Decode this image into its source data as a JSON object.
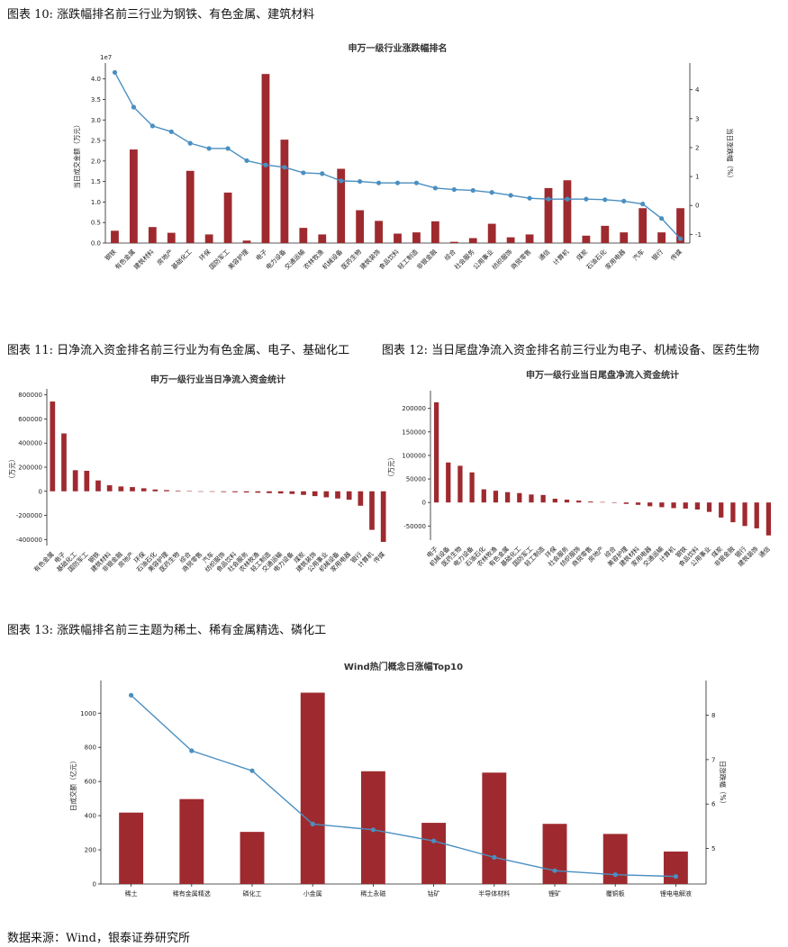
{
  "captions": {
    "fig10": "图表 10:  涨跌幅排名前三行业为钢铁、有色金属、建筑材料",
    "fig11": "图表 11:  日净流入资金排名前三行业为有色金属、电子、基础化工",
    "fig12": "图表 12:  当日尾盘净流入资金排名前三行业为电子、机械设备、医药生物",
    "fig13": "图表 13:  涨跌幅排名前三主题为稀土、稀有金属精选、磷化工"
  },
  "source": "数据来源：Wind，银泰证券研究所",
  "colors": {
    "bar": "#9e2a2f",
    "line": "#4a8fc1"
  },
  "chart_data": [
    {
      "id": "industry_rank",
      "type": "bar",
      "title": "申万一级行业涨跌幅排名",
      "ylabel": "当日成交金额（万元）",
      "y2label": "当日涨跌幅（%）",
      "yscale_label": "1e7",
      "ylim": [
        0,
        4.3
      ],
      "y2lim": [
        -1.3,
        4.8
      ],
      "yticks": [
        0.0,
        0.5,
        1.0,
        1.5,
        2.0,
        2.5,
        3.0,
        3.5,
        4.0
      ],
      "y2ticks": [
        -1,
        0,
        1,
        2,
        3,
        4
      ],
      "categories": [
        "钢铁",
        "有色金属",
        "建筑材料",
        "房地产",
        "基础化工",
        "环保",
        "国防军工",
        "美容护理",
        "电子",
        "电力设备",
        "交通运输",
        "农林牧渔",
        "机械设备",
        "医药生物",
        "建筑装饰",
        "食品饮料",
        "轻工制造",
        "非银金融",
        "综合",
        "社会服务",
        "公用事业",
        "纺织服饰",
        "商贸零售",
        "通信",
        "计算机",
        "煤炭",
        "石油石化",
        "家用电器",
        "汽车",
        "银行",
        "传媒"
      ],
      "values": [
        0.3,
        2.28,
        0.39,
        0.25,
        1.76,
        0.21,
        1.23,
        0.06,
        4.12,
        2.52,
        0.37,
        0.21,
        1.81,
        0.8,
        0.54,
        0.23,
        0.26,
        0.53,
        0.03,
        0.12,
        0.47,
        0.14,
        0.21,
        1.34,
        1.53,
        0.18,
        0.42,
        0.26,
        0.85,
        0.26,
        0.85
      ],
      "line_values": [
        4.6,
        3.4,
        2.75,
        2.55,
        2.15,
        1.97,
        1.97,
        1.55,
        1.4,
        1.32,
        1.13,
        1.1,
        0.85,
        0.83,
        0.78,
        0.78,
        0.78,
        0.6,
        0.55,
        0.52,
        0.45,
        0.35,
        0.25,
        0.22,
        0.22,
        0.22,
        0.2,
        0.15,
        0.05,
        -0.45,
        -1.15
      ]
    },
    {
      "id": "net_inflow",
      "type": "bar",
      "title": "申万一级行业当日净流入资金统计",
      "ylabel": "（万元）",
      "ylim": [
        -450000,
        820000
      ],
      "yticks": [
        -400000,
        -200000,
        0,
        200000,
        400000,
        600000,
        800000
      ],
      "categories": [
        "有色金属",
        "电子",
        "基础化工",
        "国防军工",
        "钢铁",
        "建筑材料",
        "非银金融",
        "房地产",
        "环保",
        "石油石化",
        "美容护理",
        "医药生物",
        "综合",
        "商贸零售",
        "汽车",
        "纺织服饰",
        "食品饮料",
        "社会服务",
        "农林牧渔",
        "轻工制造",
        "交通运输",
        "电力设备",
        "煤炭",
        "建筑装饰",
        "公用事业",
        "机械设备",
        "家用电器",
        "银行",
        "计算机",
        "传媒"
      ],
      "values": [
        745000,
        480000,
        175000,
        170000,
        90000,
        50000,
        40000,
        35000,
        25000,
        15000,
        10000,
        5000,
        3000,
        -2000,
        -4000,
        -6000,
        -8000,
        -10000,
        -12000,
        -15000,
        -18000,
        -22000,
        -30000,
        -40000,
        -50000,
        -60000,
        -70000,
        -120000,
        -320000,
        -420000
      ]
    },
    {
      "id": "tail_inflow",
      "type": "bar",
      "title": "申万一级行业当日尾盘净流入资金统计",
      "ylabel": "（万元）",
      "ylim": [
        -80000,
        230000
      ],
      "yticks": [
        -50000,
        0,
        50000,
        100000,
        150000,
        200000
      ],
      "categories": [
        "电子",
        "机械设备",
        "医药生物",
        "电力设备",
        "石油石化",
        "农林牧渔",
        "有色金属",
        "基础化工",
        "国防军工",
        "轻工制造",
        "环保",
        "社会服务",
        "纺织服饰",
        "商贸零售",
        "房地产",
        "综合",
        "美容护理",
        "建筑材料",
        "家用电器",
        "交通运输",
        "计算机",
        "钢铁",
        "食品饮料",
        "公用事业",
        "煤炭",
        "非银金融",
        "银行",
        "建筑装饰",
        "通信"
      ],
      "values": [
        213000,
        85000,
        78000,
        64000,
        28000,
        25000,
        22000,
        20000,
        17000,
        16000,
        8000,
        6000,
        4000,
        2000,
        1000,
        -1000,
        -3000,
        -5000,
        -8000,
        -10000,
        -12000,
        -13000,
        -15000,
        -20000,
        -32000,
        -42000,
        -50000,
        -55000,
        -70000
      ]
    },
    {
      "id": "concept_top10",
      "type": "bar",
      "title": "Wind热门概念日涨幅Top10",
      "ylabel": "日成交额（亿元）",
      "y2label": "日涨跌幅（%）",
      "ylim": [
        0,
        1170
      ],
      "y2lim": [
        4.2,
        8.7
      ],
      "yticks": [
        0,
        200,
        400,
        600,
        800,
        1000
      ],
      "y2ticks": [
        5,
        6,
        7,
        8
      ],
      "categories": [
        "稀土",
        "稀有金属精选",
        "磷化工",
        "小金属",
        "稀土永磁",
        "钴矿",
        "半导体材料",
        "锂矿",
        "覆铜板",
        "锂电电解液"
      ],
      "values": [
        418,
        497,
        305,
        1120,
        660,
        358,
        652,
        352,
        293,
        190
      ],
      "line_values": [
        8.45,
        7.2,
        6.75,
        5.55,
        5.42,
        5.17,
        4.8,
        4.5,
        4.41,
        4.37
      ]
    }
  ]
}
